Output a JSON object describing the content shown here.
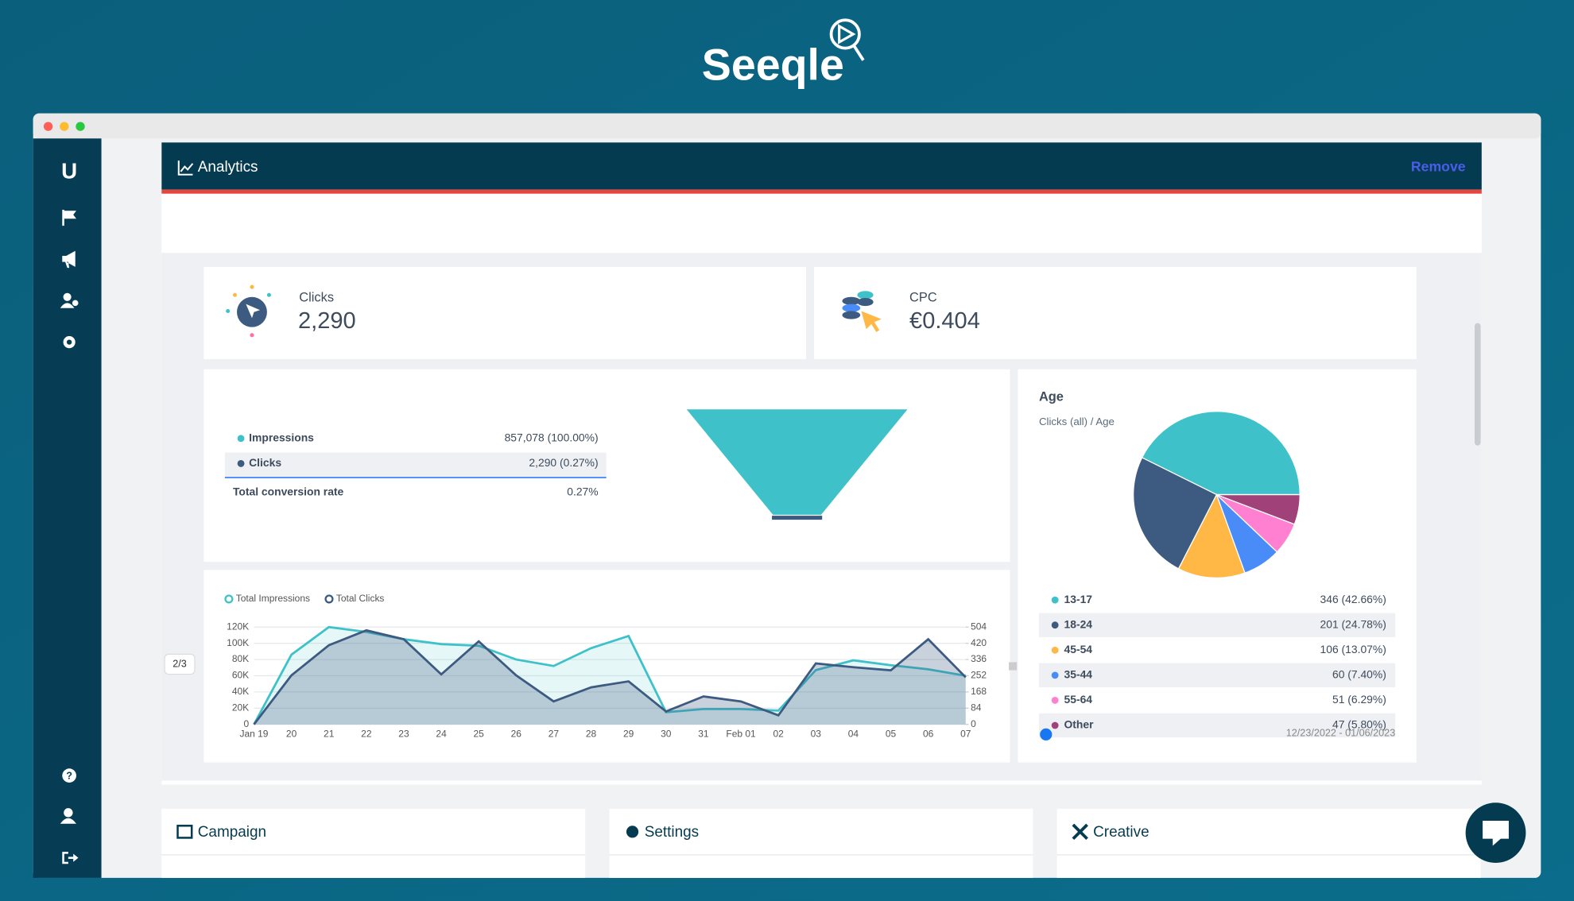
{
  "app": {
    "logo": "Seeqle",
    "sidebar_logo": "U"
  },
  "panel": {
    "title": "Analytics",
    "action": "Remove",
    "page_indicator": "2/3"
  },
  "kpis": [
    {
      "label": "Clicks",
      "value": "2,290"
    },
    {
      "label": "CPC",
      "value": "€0.404"
    }
  ],
  "chart_data": [
    {
      "type": "funnel",
      "categories": [
        "Impressions",
        "Clicks"
      ],
      "values": [
        857078,
        2290
      ],
      "value_labels": [
        "857,078 (100.00%)",
        "2,290 (0.27%)"
      ],
      "colors": [
        "#3fc1c9",
        "#3d5a80"
      ],
      "total_label": "Total conversion rate",
      "total_rate_label": "0.27%"
    },
    {
      "type": "line",
      "x": [
        "Jan 19",
        "20",
        "21",
        "22",
        "23",
        "24",
        "25",
        "26",
        "27",
        "28",
        "29",
        "30",
        "31",
        "Feb 01",
        "02",
        "03",
        "04",
        "05",
        "06",
        "07"
      ],
      "series": [
        {
          "name": "Total Impressions",
          "color": "#3fc1c9",
          "values": [
            0,
            86000,
            120000,
            114000,
            105000,
            99000,
            97000,
            80000,
            72000,
            94000,
            109000,
            15000,
            19000,
            19000,
            17000,
            67000,
            79000,
            73000,
            68000,
            60000
          ]
        },
        {
          "name": "Total Clicks",
          "color": "#3d5a80",
          "axis": "y2",
          "values": [
            0,
            254,
            410,
            487,
            441,
            259,
            430,
            254,
            119,
            192,
            223,
            67,
            145,
            119,
            47,
            316,
            296,
            280,
            441,
            244
          ]
        }
      ],
      "ylim": [
        0,
        120000
      ],
      "yticks": [
        0,
        {
          "value": 20000,
          "label": "20K"
        },
        {
          "value": 40000,
          "label": "40K"
        },
        {
          "value": 60000,
          "label": "60K"
        },
        {
          "value": 80000,
          "label": "80K"
        },
        {
          "value": 100000,
          "label": "100K"
        },
        {
          "value": 120000,
          "label": "120K"
        }
      ],
      "y2lim": [
        0,
        504
      ],
      "y2ticks": [
        0,
        84,
        168,
        252,
        336,
        420,
        504
      ],
      "grid": true
    },
    {
      "type": "pie",
      "title": "Age",
      "subtitle": "Clicks (all) / Age",
      "categories": [
        "13-17",
        "18-24",
        "45-54",
        "35-44",
        "55-64",
        "Other"
      ],
      "values": [
        346,
        201,
        106,
        60,
        51,
        47
      ],
      "value_labels": [
        "346 (42.66%)",
        "201 (24.78%)",
        "106 (13.07%)",
        "60 (7.40%)",
        "51 (6.29%)",
        "47 (5.80%)"
      ],
      "colors": [
        "#3fc1c9",
        "#3d5a80",
        "#ffb845",
        "#4a8cf7",
        "#ff7fd0",
        "#a0417a"
      ]
    }
  ],
  "date_range": "12/23/2022 - 01/06/2023",
  "sections": [
    "Campaign",
    "Settings",
    "Creative"
  ]
}
